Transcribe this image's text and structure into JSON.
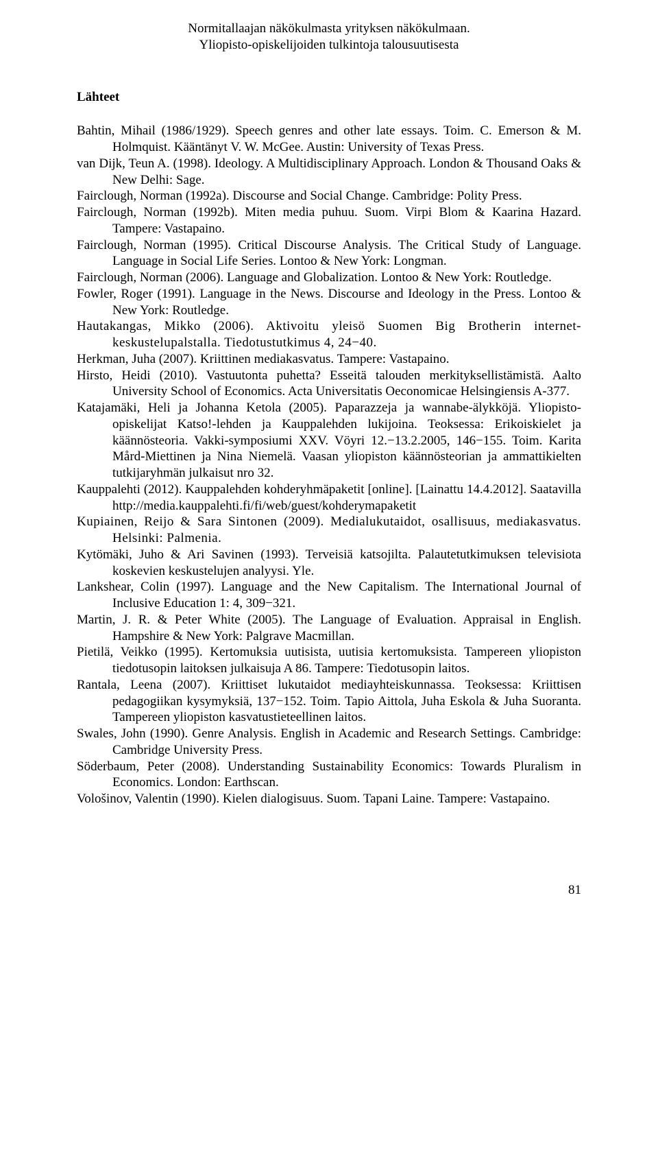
{
  "header": {
    "line1": "Normitallaajan näkökulmasta yrityksen näkökulmaan.",
    "line2": "Yliopisto-opiskelijoiden tulkintoja talousuutisesta"
  },
  "section_title": "Lähteet",
  "references": [
    "Bahtin, Mihail (1986/1929). Speech genres and other late essays. Toim. C. Emerson & M. Holmquist. Kääntänyt V. W. McGee. Austin: University of Texas Press.",
    "van Dijk, Teun A. (1998). Ideology. A Multidisciplinary Approach. London & Thousand Oaks & New Delhi: Sage.",
    "Fairclough, Norman (1992a). Discourse and Social Change. Cambridge: Polity Press.",
    "Fairclough, Norman (1992b). Miten media puhuu. Suom. Virpi Blom & Kaarina Hazard. Tampere: Vastapaino.",
    "Fairclough, Norman (1995). Critical Discourse Analysis. The Critical Study of Language. Language in Social Life Series. Lontoo & New York: Longman.",
    "Fairclough, Norman (2006). Language and Globalization. Lontoo & New York: Routledge.",
    "Fowler, Roger (1991). Language in the News. Discourse and Ideology in the Press. Lontoo & New York: Routledge.",
    "Hautakangas, Mikko (2006). Aktivoitu yleisö Suomen Big Brotherin internet-keskustelupalstalla. Tiedotustutkimus 4, 24−40.",
    "Herkman, Juha (2007). Kriittinen mediakasvatus. Tampere: Vastapaino.",
    "Hirsto, Heidi (2010). Vastuutonta puhetta? Esseitä talouden merkityksellistämistä. Aalto University School of Economics. Acta Universitatis Oeconomicae Helsingiensis A-377.",
    "Katajamäki, Heli ja Johanna Ketola (2005). Paparazzeja ja wannabe-älykköjä. Yliopisto-opiskelijat Katso!-lehden ja Kauppalehden lukijoina. Teoksessa: Erikoiskielet ja käännösteoria. Vakki-symposiumi XXV. Vöyri 12.−13.2.2005, 146−155. Toim. Karita Mård-Miettinen ja Nina Niemelä. Vaasan yliopiston käännösteorian ja ammattikielten tutkijaryhmän julkaisut nro 32.",
    "Kauppalehti (2012). Kauppalehden kohderyhmäpaketit [online]. [Lainattu 14.4.2012]. Saatavilla http://media.kauppalehti.fi/fi/web/guest/kohderymapaketit",
    "Kupiainen, Reijo & Sara Sintonen (2009). Medialukutaidot, osallisuus, mediakasvatus. Helsinki: Palmenia.",
    "Kytömäki, Juho & Ari Savinen (1993). Terveisiä katsojilta. Palautetutkimuksen televisiota koskevien keskustelujen analyysi. Yle.",
    "Lankshear, Colin (1997). Language and the New Capitalism. The International Journal of Inclusive Education 1: 4, 309−321.",
    "Martin, J. R. & Peter White (2005). The Language of Evaluation. Appraisal in English. Hampshire & New York: Palgrave Macmillan.",
    "Pietilä, Veikko (1995). Kertomuksia uutisista, uutisia kertomuksista. Tampereen yliopiston tiedotusopin laitoksen julkaisuja A 86. Tampere: Tiedotusopin laitos.",
    "Rantala, Leena (2007). Kriittiset lukutaidot mediayhteiskunnassa. Teoksessa: Kriittisen pedagogiikan kysymyksiä, 137−152. Toim. Tapio Aittola, Juha Eskola & Juha Suoranta. Tampereen yliopiston kasvatustieteellinen laitos.",
    "Swales, John (1990). Genre Analysis. English in Academic and Research Settings. Cambridge: Cambridge University Press.",
    "Söderbaum, Peter (2008). Understanding Sustainability Economics: Towards Pluralism in Economics. London: Earthscan.",
    "Vološinov, Valentin (1990). Kielen dialogisuus. Suom. Tapani Laine. Tampere: Vastapaino."
  ],
  "ref_wide": [
    false,
    false,
    false,
    false,
    false,
    false,
    false,
    true,
    false,
    false,
    false,
    false,
    true,
    false,
    false,
    false,
    false,
    false,
    false,
    false,
    false
  ],
  "page_number": "81"
}
